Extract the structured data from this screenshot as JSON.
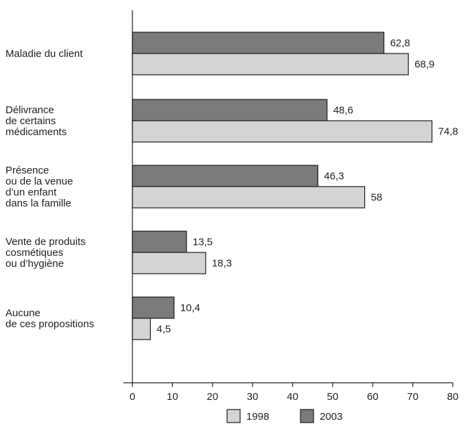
{
  "chart_data": {
    "type": "bar",
    "orientation": "horizontal",
    "categories": [
      [
        "Maladie du client"
      ],
      [
        "Délivrance",
        "de certains",
        "médicaments"
      ],
      [
        "Présence",
        "ou de la venue",
        "d’un enfant",
        "dans la famille"
      ],
      [
        "Vente de produits",
        "cosmétiques",
        "ou d’hygiène"
      ],
      [
        "Aucune",
        "de ces propositions"
      ]
    ],
    "series": [
      {
        "name": "2003",
        "color": "#7b7b7b",
        "values": [
          62.8,
          48.6,
          46.3,
          13.5,
          10.4
        ],
        "value_labels": [
          "62,8",
          "48,6",
          "46,3",
          "13,5",
          "10,4"
        ]
      },
      {
        "name": "1998",
        "color": "#d4d4d4",
        "values": [
          68.9,
          74.8,
          58,
          18.3,
          4.5
        ],
        "value_labels": [
          "68,9",
          "74,8",
          "58",
          "18,3",
          "4,5"
        ]
      }
    ],
    "xlim": [
      0,
      80
    ],
    "xticks": [
      "0",
      "10",
      "20",
      "30",
      "40",
      "50",
      "60",
      "70",
      "80"
    ],
    "title": "",
    "xlabel": "",
    "ylabel": "",
    "grid": false,
    "legend": {
      "position": "bottom",
      "entries": [
        {
          "label": "1998",
          "color": "#d4d4d4"
        },
        {
          "label": "2003",
          "color": "#7b7b7b"
        }
      ]
    }
  }
}
